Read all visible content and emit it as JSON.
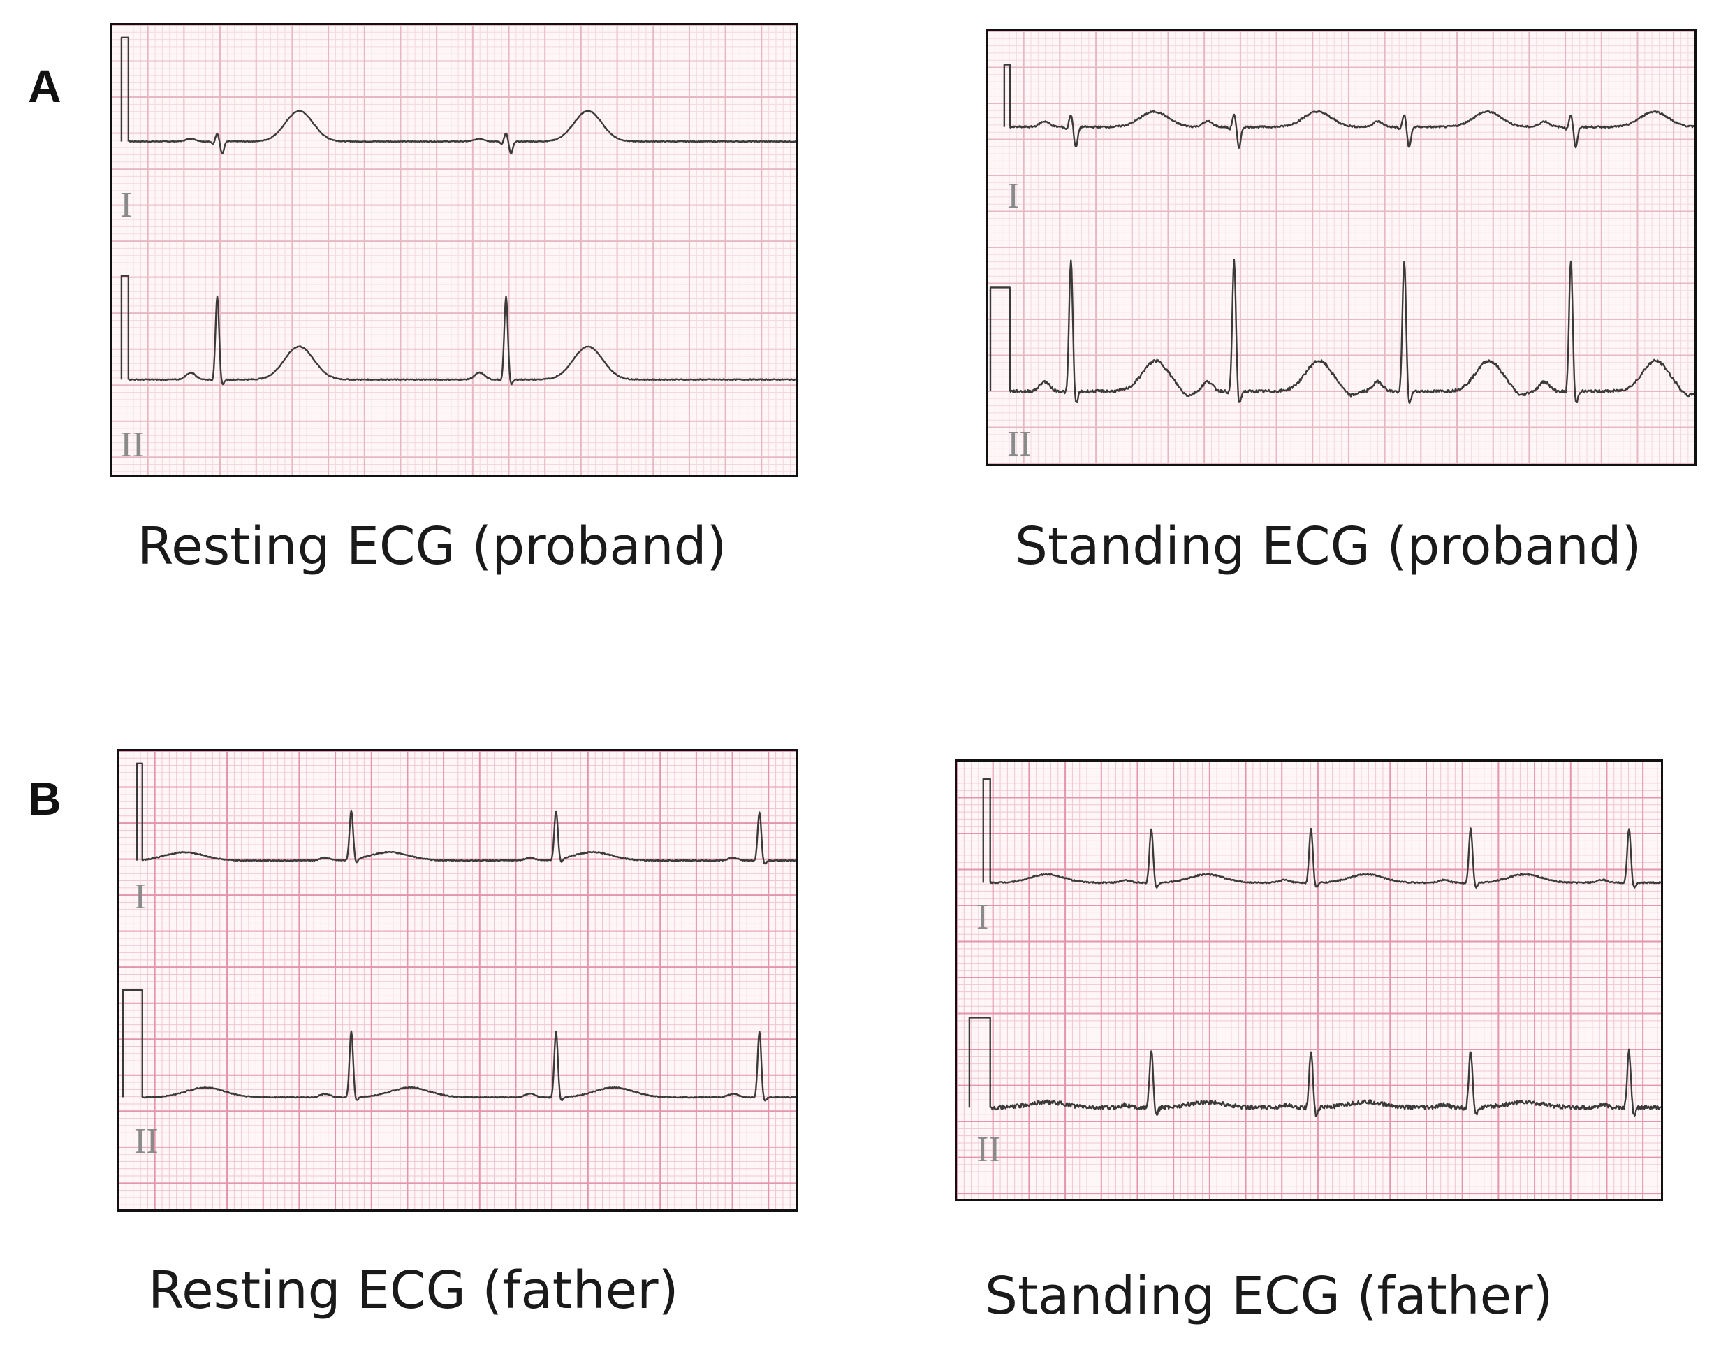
{
  "panels": {
    "a": {
      "label": "A"
    },
    "b": {
      "label": "B"
    }
  },
  "strips": {
    "rest_proband": {
      "caption": "Resting ECG  (proband)",
      "lead_top": "I",
      "lead_bottom": "II",
      "grid": "light"
    },
    "stand_proband": {
      "caption": "Standing ECG (proband)",
      "lead_top": "I",
      "lead_bottom": "II",
      "grid": "light"
    },
    "rest_father": {
      "caption": "Resting ECG (father)",
      "lead_top": "I",
      "lead_bottom": "II",
      "grid": "pink"
    },
    "stand_father": {
      "caption": "Standing ECG (father)",
      "lead_top": "I",
      "lead_bottom": "II",
      "grid": "pink"
    }
  },
  "colors": {
    "grid_minor_light": "#f3d9df",
    "grid_major_light": "#e7b8c3",
    "grid_minor_pink": "#f1c6d3",
    "grid_major_pink": "#e494ad",
    "trace": "#3a3a3a"
  }
}
